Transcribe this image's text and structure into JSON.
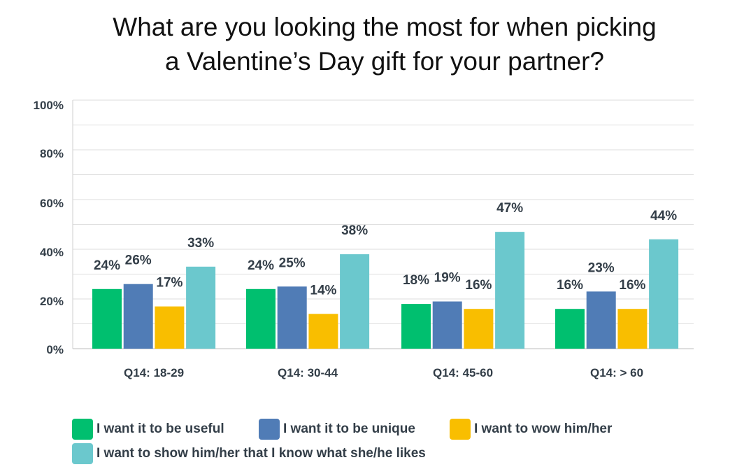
{
  "chart_data": {
    "type": "bar",
    "title": [
      "What are you looking the most for when picking",
      "a Valentine’s Day gift for your partner?"
    ],
    "categories": [
      "Q14: 18-29",
      "Q14: 30-44",
      "Q14: 45-60",
      "Q14: > 60"
    ],
    "series": [
      {
        "name": "I want it to be useful",
        "color": "#00bf6f",
        "values": [
          24,
          24,
          18,
          16
        ]
      },
      {
        "name": "I want it to be unique",
        "color": "#507cb6",
        "values": [
          26,
          25,
          19,
          23
        ]
      },
      {
        "name": "I want to wow him/her",
        "color": "#f9be00",
        "values": [
          17,
          14,
          16,
          16
        ]
      },
      {
        "name": "I want to show him/her that I know what she/he likes",
        "color": "#6bc8cd",
        "values": [
          33,
          38,
          47,
          44
        ]
      }
    ],
    "y_ticks": [
      "0%",
      "20%",
      "40%",
      "60%",
      "80%",
      "100%"
    ],
    "ylim": [
      0,
      100
    ],
    "value_suffix": "%",
    "legend_position": "bottom",
    "grid": true
  }
}
